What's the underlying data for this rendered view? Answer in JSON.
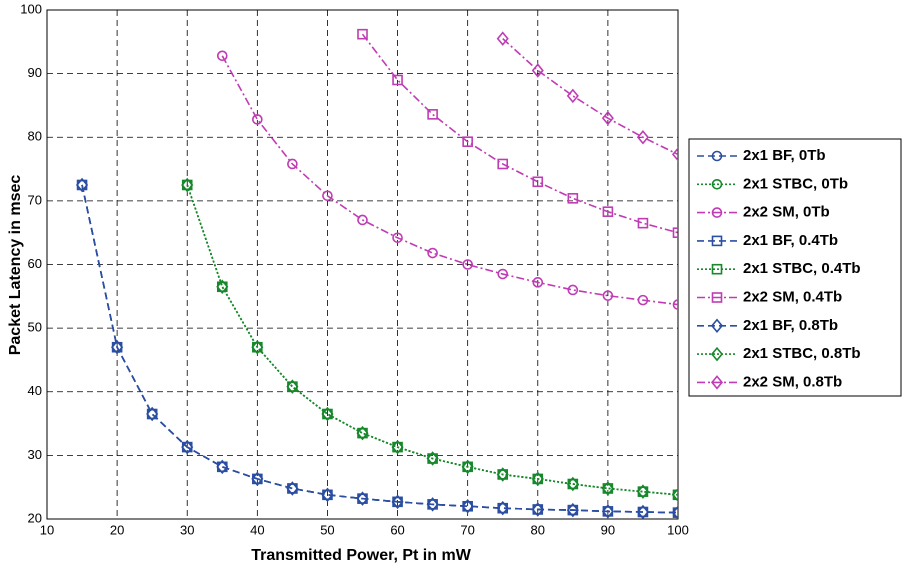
{
  "chart_data": {
    "type": "line",
    "x_label": "Transmitted Power, Pt in mW",
    "y_label": "Packet Latency in msec",
    "x": [
      15,
      20,
      25,
      30,
      35,
      40,
      45,
      50,
      55,
      60,
      65,
      70,
      75,
      80,
      85,
      90,
      95,
      100
    ],
    "xlim": [
      10,
      100
    ],
    "xticks": [
      10,
      20,
      30,
      40,
      50,
      60,
      70,
      80,
      90,
      100
    ],
    "ylim": [
      20,
      100
    ],
    "yticks": [
      20,
      30,
      40,
      50,
      60,
      70,
      80,
      90,
      100
    ],
    "grid": true,
    "legend": "right",
    "series": [
      {
        "name": "2x1 BF, 0Tb",
        "color": "#2b4ea2",
        "dash": "dashed",
        "marker": "circle",
        "values": [
          72.5,
          47,
          36.5,
          31.3,
          28.2,
          26.3,
          24.8,
          23.8,
          23.2,
          22.7,
          22.3,
          22,
          21.7,
          21.5,
          21.4,
          21.2,
          21.1,
          21
        ]
      },
      {
        "name": "2x1 STBC, 0Tb",
        "color": "#17882b",
        "dash": "dotted",
        "marker": "circle",
        "values": [
          null,
          null,
          null,
          72.5,
          56.5,
          47,
          40.8,
          36.5,
          33.5,
          31.3,
          29.5,
          28.2,
          27,
          26.3,
          25.5,
          24.8,
          24.3,
          23.8
        ]
      },
      {
        "name": "2x2 SM, 0Tb",
        "color": "#c03cb4",
        "dash": "dashdot",
        "marker": "circle",
        "values": [
          null,
          null,
          null,
          null,
          92.8,
          82.8,
          75.8,
          70.8,
          67,
          64.2,
          61.8,
          60,
          58.5,
          57.2,
          56,
          55.1,
          54.4,
          53.7
        ]
      },
      {
        "name": "2x1 BF, 0.4Tb",
        "color": "#2b4ea2",
        "dash": "dashed",
        "marker": "square",
        "values": [
          72.5,
          47,
          36.5,
          31.3,
          28.2,
          26.3,
          24.8,
          23.8,
          23.2,
          22.7,
          22.3,
          22,
          21.7,
          21.5,
          21.4,
          21.2,
          21.1,
          21
        ]
      },
      {
        "name": "2x1 STBC, 0.4Tb",
        "color": "#17882b",
        "dash": "dotted",
        "marker": "square",
        "values": [
          null,
          null,
          null,
          72.5,
          56.5,
          47,
          40.8,
          36.5,
          33.5,
          31.3,
          29.5,
          28.2,
          27,
          26.3,
          25.5,
          24.8,
          24.3,
          23.8
        ]
      },
      {
        "name": "2x2 SM, 0.4Tb",
        "color": "#c03cb4",
        "dash": "dashdot",
        "marker": "square",
        "values": [
          null,
          null,
          null,
          null,
          null,
          null,
          null,
          null,
          96.2,
          89,
          83.6,
          79.3,
          75.8,
          73,
          70.4,
          68.3,
          66.5,
          65
        ]
      },
      {
        "name": "2x1 BF, 0.8Tb",
        "color": "#2b4ea2",
        "dash": "dashed",
        "marker": "diamond",
        "values": [
          72.5,
          47,
          36.5,
          31.3,
          28.2,
          26.3,
          24.8,
          23.8,
          23.2,
          22.7,
          22.3,
          22,
          21.7,
          21.5,
          21.4,
          21.2,
          21.1,
          21
        ]
      },
      {
        "name": "2x1 STBC, 0.8Tb",
        "color": "#17882b",
        "dash": "dotted",
        "marker": "diamond",
        "values": [
          null,
          null,
          null,
          72.5,
          56.5,
          47,
          40.8,
          36.5,
          33.5,
          31.3,
          29.5,
          28.2,
          27,
          26.3,
          25.5,
          24.8,
          24.3,
          23.8
        ]
      },
      {
        "name": "2x2 SM, 0.8Tb",
        "color": "#c03cb4",
        "dash": "dashdot",
        "marker": "diamond",
        "values": [
          null,
          null,
          null,
          null,
          null,
          null,
          null,
          null,
          null,
          null,
          null,
          null,
          95.5,
          90.5,
          86.5,
          83,
          80,
          77.3
        ]
      }
    ]
  }
}
